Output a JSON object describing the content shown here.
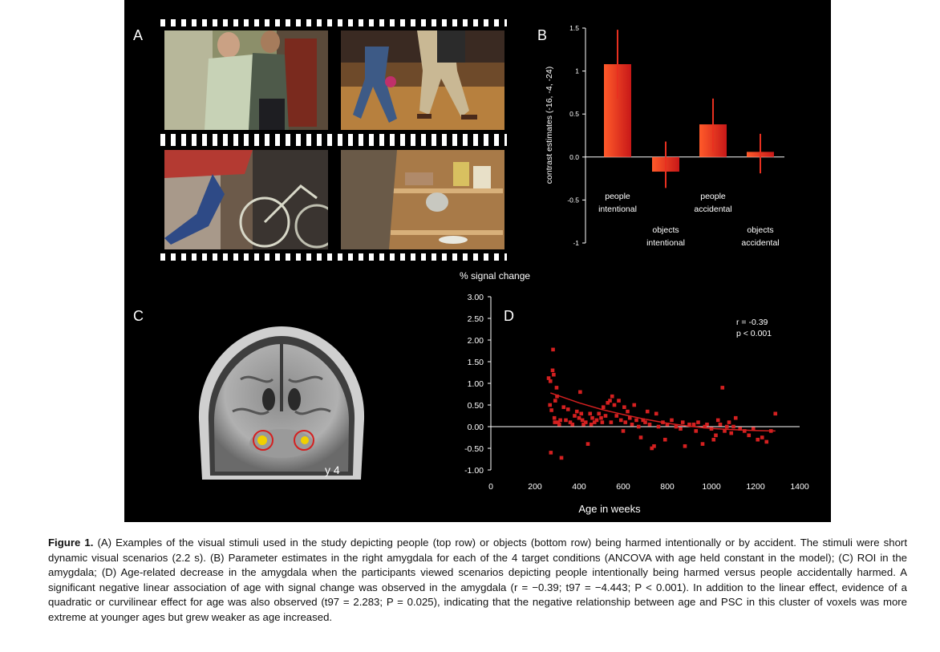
{
  "figure": {
    "panel_labels": {
      "a": "A",
      "b": "B",
      "c": "C",
      "d": "D"
    },
    "stimuli": [
      {
        "scene": "people-intentional"
      },
      {
        "scene": "people-accidental"
      },
      {
        "scene": "objects-intentional"
      },
      {
        "scene": "objects-accidental"
      }
    ],
    "brain": {
      "slice_label": "y 4"
    },
    "scatter_stats": {
      "r": "r = -0.39",
      "p": "p < 0.001"
    }
  },
  "chart_data": [
    {
      "type": "bar",
      "ylabel": "contrast estimates (-16, -4, -24)",
      "ylim": [
        -1,
        1.5
      ],
      "yticks": [
        "-1",
        "-0.5",
        "0.0",
        "0.5",
        "1",
        "1.5"
      ],
      "yticks_values": [
        -1,
        -0.5,
        0,
        0.5,
        1,
        1.5
      ],
      "categories": [
        {
          "line1": "people",
          "line2": "intentional"
        },
        {
          "line1": "objects",
          "line2": "intentional"
        },
        {
          "line1": "people",
          "line2": "accidental"
        },
        {
          "line1": "objects",
          "line2": "accidental"
        }
      ],
      "values": [
        1.08,
        -0.17,
        0.38,
        0.06
      ],
      "error_bars": [
        [
          0.68,
          1.48
        ],
        [
          -0.36,
          0.18
        ],
        [
          0.06,
          0.68
        ],
        [
          -0.19,
          0.27
        ]
      ],
      "bar_color": "#e8401c"
    },
    {
      "type": "scatter",
      "ylabel": "% signal change",
      "xlabel": "Age in weeks",
      "xlim": [
        0,
        1400
      ],
      "ylim": [
        -1.0,
        3.0
      ],
      "xticks": [
        "0",
        "200",
        "400",
        "600",
        "800",
        "1000",
        "1200",
        "1400"
      ],
      "yticks": [
        "-1.00",
        "-0.50",
        "0.00",
        "0.50",
        "1.00",
        "1.50",
        "2.00",
        "2.50",
        "3.00"
      ],
      "marker_color": "#d42020",
      "x": [
        262,
        268,
        270,
        272,
        275,
        280,
        282,
        285,
        288,
        290,
        292,
        298,
        300,
        305,
        310,
        315,
        320,
        330,
        340,
        350,
        360,
        370,
        380,
        390,
        400,
        405,
        410,
        415,
        420,
        430,
        440,
        450,
        455,
        460,
        470,
        480,
        490,
        500,
        505,
        510,
        520,
        530,
        540,
        545,
        550,
        560,
        570,
        580,
        590,
        600,
        605,
        610,
        620,
        630,
        640,
        650,
        660,
        670,
        680,
        690,
        700,
        710,
        720,
        730,
        740,
        750,
        760,
        780,
        790,
        800,
        820,
        840,
        860,
        870,
        880,
        900,
        920,
        930,
        940,
        960,
        970,
        980,
        1000,
        1010,
        1020,
        1030,
        1040,
        1050,
        1060,
        1070,
        1080,
        1090,
        1100,
        1110,
        1130,
        1150,
        1170,
        1190,
        1210,
        1230,
        1250,
        1270,
        1290
      ],
      "y": [
        1.12,
        0.5,
        1.05,
        -0.6,
        0.38,
        1.3,
        1.78,
        1.2,
        0.2,
        0.1,
        0.6,
        0.9,
        0.7,
        0.1,
        0.05,
        0.15,
        -0.72,
        0.45,
        0.15,
        0.4,
        0.1,
        0.05,
        0.25,
        0.35,
        0.2,
        0.8,
        0.3,
        0.15,
        0.05,
        0.1,
        -0.4,
        0.3,
        0.05,
        0.2,
        0.1,
        0.15,
        0.3,
        0.2,
        0.1,
        0.45,
        0.25,
        0.55,
        0.6,
        0.1,
        0.7,
        0.5,
        0.25,
        0.6,
        0.15,
        -0.1,
        0.45,
        0.1,
        0.35,
        0.2,
        0.05,
        0.5,
        0.15,
        0.0,
        -0.25,
        0.15,
        0.1,
        0.35,
        0.05,
        -0.5,
        -0.45,
        0.3,
        0.0,
        0.1,
        -0.3,
        0.05,
        0.15,
        0.0,
        -0.05,
        0.1,
        -0.45,
        0.05,
        0.05,
        -0.1,
        0.1,
        -0.4,
        0.0,
        0.05,
        -0.05,
        -0.3,
        -0.2,
        0.15,
        0.05,
        0.9,
        -0.1,
        0.0,
        0.1,
        -0.15,
        0.0,
        0.2,
        -0.05,
        -0.1,
        -0.2,
        -0.05,
        -0.3,
        -0.25,
        -0.35,
        -0.1,
        0.3
      ],
      "trend": {
        "type": "quadratic",
        "color": "#d42020",
        "points": [
          [
            270,
            0.78
          ],
          [
            400,
            0.55
          ],
          [
            500,
            0.4
          ],
          [
            600,
            0.28
          ],
          [
            700,
            0.17
          ],
          [
            800,
            0.08
          ],
          [
            900,
            0.01
          ],
          [
            1000,
            -0.04
          ],
          [
            1100,
            -0.07
          ],
          [
            1200,
            -0.09
          ],
          [
            1290,
            -0.1
          ]
        ]
      }
    }
  ],
  "caption": {
    "label": "Figure 1.",
    "text": "(A) Examples of the visual stimuli used in the study depicting people (top row) or objects (bottom row) being harmed intentionally or by accident. The stimuli were short dynamic visual scenarios (2.2 s). (B) Parameter estimates in the right amygdala for each of the 4 target conditions (ANCOVA with age held constant in the model); (C) ROI in the amygdala; (D) Age-related decrease in the amygdala when the participants viewed scenarios depicting people intentionally being harmed versus people accidentally harmed. A significant negative linear association of age with signal change was observed in the amygdala (r = −0.39; t97 = −4.443; P < 0.001). In addition to the linear effect, evidence of a quadratic or curvilinear effect for age was also observed (t97 = 2.283; P = 0.025), indicating that the negative relationship between age and PSC in this cluster of voxels was more extreme at younger ages but grew weaker as age increased."
  }
}
